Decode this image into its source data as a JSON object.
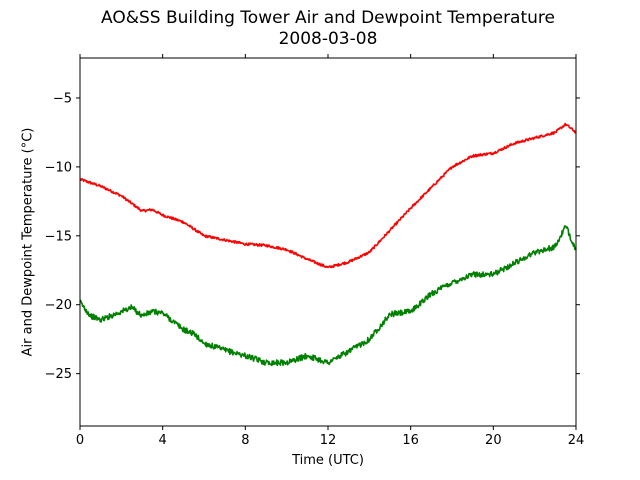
{
  "chart_data": {
    "type": "line",
    "title": "AO&SS Building Tower Air and Dewpoint Temperature",
    "subtitle": "2008-03-08",
    "xlabel": "Time (UTC)",
    "ylabel": "Air and Dewpoint Temperature (°C)",
    "xlim": [
      0,
      24
    ],
    "ylim": [
      -28.8,
      -2.1
    ],
    "xticks": [
      0,
      4,
      8,
      12,
      16,
      20,
      24
    ],
    "yticks": [
      -25,
      -20,
      -15,
      -10,
      -5
    ],
    "grid": false,
    "series": [
      {
        "color": "#ff0000",
        "x": [
          0,
          1,
          2,
          3,
          3.5,
          4,
          5,
          6,
          7,
          8,
          9,
          10,
          11,
          12,
          13,
          14,
          15,
          16,
          17,
          18,
          19,
          20,
          21,
          22,
          23,
          23.5,
          24
        ],
        "y": [
          -10.9,
          -11.4,
          -12.1,
          -13.2,
          -13.1,
          -13.5,
          -14.0,
          -15.0,
          -15.3,
          -15.6,
          -15.7,
          -16.0,
          -16.7,
          -17.3,
          -16.9,
          -16.2,
          -14.6,
          -13.0,
          -11.5,
          -10.0,
          -9.2,
          -9.0,
          -8.3,
          -7.9,
          -7.5,
          -6.9,
          -7.5
        ]
      },
      {
        "color": "#008000",
        "x": [
          0,
          0.5,
          1,
          1.5,
          2,
          2.5,
          3,
          3.5,
          4,
          4.5,
          5,
          5.5,
          6,
          7,
          8,
          9,
          10,
          11,
          12,
          13,
          14,
          15,
          16,
          17,
          18,
          19,
          20,
          21,
          22,
          23,
          23.5,
          24
        ],
        "y": [
          -19.8,
          -20.8,
          -21.1,
          -20.8,
          -20.5,
          -20.2,
          -20.8,
          -20.5,
          -20.6,
          -21.2,
          -21.8,
          -22.1,
          -22.8,
          -23.3,
          -23.7,
          -24.2,
          -24.2,
          -23.7,
          -24.2,
          -23.4,
          -22.5,
          -20.7,
          -20.5,
          -19.2,
          -18.4,
          -17.8,
          -17.8,
          -17.0,
          -16.2,
          -15.8,
          -14.3,
          -16.0
        ]
      }
    ]
  }
}
